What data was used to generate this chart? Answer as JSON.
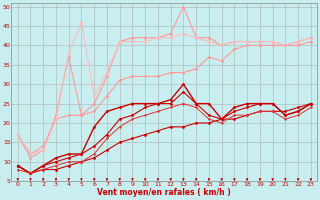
{
  "background_color": "#c8eef0",
  "grid_color": "#b0b0b0",
  "xlabel": "Vent moyen/en rafales ( km/h )",
  "xlim": [
    -0.5,
    23.5
  ],
  "ylim": [
    5,
    51
  ],
  "yticks": [
    5,
    10,
    15,
    20,
    25,
    30,
    35,
    40,
    45,
    50
  ],
  "xticks": [
    0,
    1,
    2,
    3,
    4,
    5,
    6,
    7,
    8,
    9,
    10,
    11,
    12,
    13,
    14,
    15,
    16,
    17,
    18,
    19,
    20,
    21,
    22,
    23
  ],
  "series": [
    {
      "x": [
        0,
        1,
        2,
        3,
        4,
        5,
        6,
        7,
        8,
        9,
        10,
        11,
        12,
        13,
        14,
        15,
        16,
        17,
        18,
        19,
        20,
        21,
        22,
        23
      ],
      "y": [
        9,
        7,
        8,
        8,
        9,
        10,
        11,
        13,
        15,
        16,
        17,
        18,
        19,
        19,
        20,
        20,
        21,
        21,
        22,
        23,
        23,
        23,
        24,
        25
      ],
      "color": "#cc0000",
      "lw": 0.8,
      "marker": "D",
      "ms": 1.5
    },
    {
      "x": [
        0,
        1,
        2,
        3,
        4,
        5,
        6,
        7,
        8,
        9,
        10,
        11,
        12,
        13,
        14,
        15,
        16,
        17,
        18,
        19,
        20,
        21,
        22,
        23
      ],
      "y": [
        9,
        7,
        9,
        10,
        11,
        12,
        14,
        17,
        21,
        22,
        24,
        25,
        25,
        28,
        25,
        22,
        21,
        23,
        24,
        25,
        25,
        22,
        23,
        25
      ],
      "color": "#cc0000",
      "lw": 0.8,
      "marker": "D",
      "ms": 1.5
    },
    {
      "x": [
        0,
        1,
        2,
        3,
        4,
        5,
        6,
        7,
        8,
        9,
        10,
        11,
        12,
        13,
        14,
        15,
        16,
        17,
        18,
        19,
        20,
        21,
        22,
        23
      ],
      "y": [
        9,
        7,
        9,
        11,
        12,
        12,
        19,
        23,
        24,
        25,
        25,
        25,
        26,
        30,
        25,
        25,
        21,
        24,
        25,
        25,
        25,
        22,
        23,
        25
      ],
      "color": "#cc0000",
      "lw": 1.0,
      "marker": "D",
      "ms": 1.5
    },
    {
      "x": [
        0,
        1,
        2,
        3,
        4,
        5,
        6,
        7,
        8,
        9,
        10,
        11,
        12,
        13,
        14,
        15,
        16,
        17,
        18,
        19,
        20,
        21,
        22,
        23
      ],
      "y": [
        8,
        7,
        8,
        9,
        10,
        10,
        12,
        16,
        19,
        21,
        22,
        23,
        24,
        25,
        24,
        21,
        20,
        22,
        22,
        23,
        23,
        21,
        22,
        24
      ],
      "color": "#dd3333",
      "lw": 0.7,
      "marker": "D",
      "ms": 1.2
    },
    {
      "x": [
        0,
        1,
        2,
        3,
        4,
        5,
        6,
        7,
        8,
        9,
        10,
        11,
        12,
        13,
        14,
        15,
        16,
        17,
        18,
        19,
        20,
        21,
        22,
        23
      ],
      "y": [
        17,
        12,
        14,
        21,
        22,
        22,
        23,
        27,
        31,
        32,
        32,
        32,
        33,
        33,
        34,
        37,
        36,
        39,
        40,
        40,
        40,
        40,
        40,
        41
      ],
      "color": "#ff9999",
      "lw": 0.8,
      "marker": "D",
      "ms": 1.5
    },
    {
      "x": [
        0,
        1,
        2,
        3,
        4,
        5,
        6,
        7,
        8,
        9,
        10,
        11,
        12,
        13,
        14,
        15,
        16,
        17,
        18,
        19,
        20,
        21,
        22,
        23
      ],
      "y": [
        17,
        11,
        13,
        22,
        37,
        22,
        25,
        32,
        41,
        42,
        42,
        42,
        43,
        50,
        42,
        42,
        40,
        41,
        41,
        41,
        41,
        40,
        41,
        42
      ],
      "color": "#ff9999",
      "lw": 0.8,
      "marker": "D",
      "ms": 1.5
    },
    {
      "x": [
        0,
        1,
        2,
        3,
        4,
        5,
        6,
        7,
        8,
        9,
        10,
        11,
        12,
        13,
        14,
        15,
        16,
        17,
        18,
        19,
        20,
        21,
        22,
        23
      ],
      "y": [
        17,
        12,
        13,
        21,
        38,
        46,
        27,
        33,
        41,
        41,
        41,
        42,
        42,
        43,
        42,
        41,
        40,
        41,
        41,
        41,
        41,
        40,
        41,
        42
      ],
      "color": "#ffbbbb",
      "lw": 0.8,
      "marker": "D",
      "ms": 1.5
    }
  ]
}
